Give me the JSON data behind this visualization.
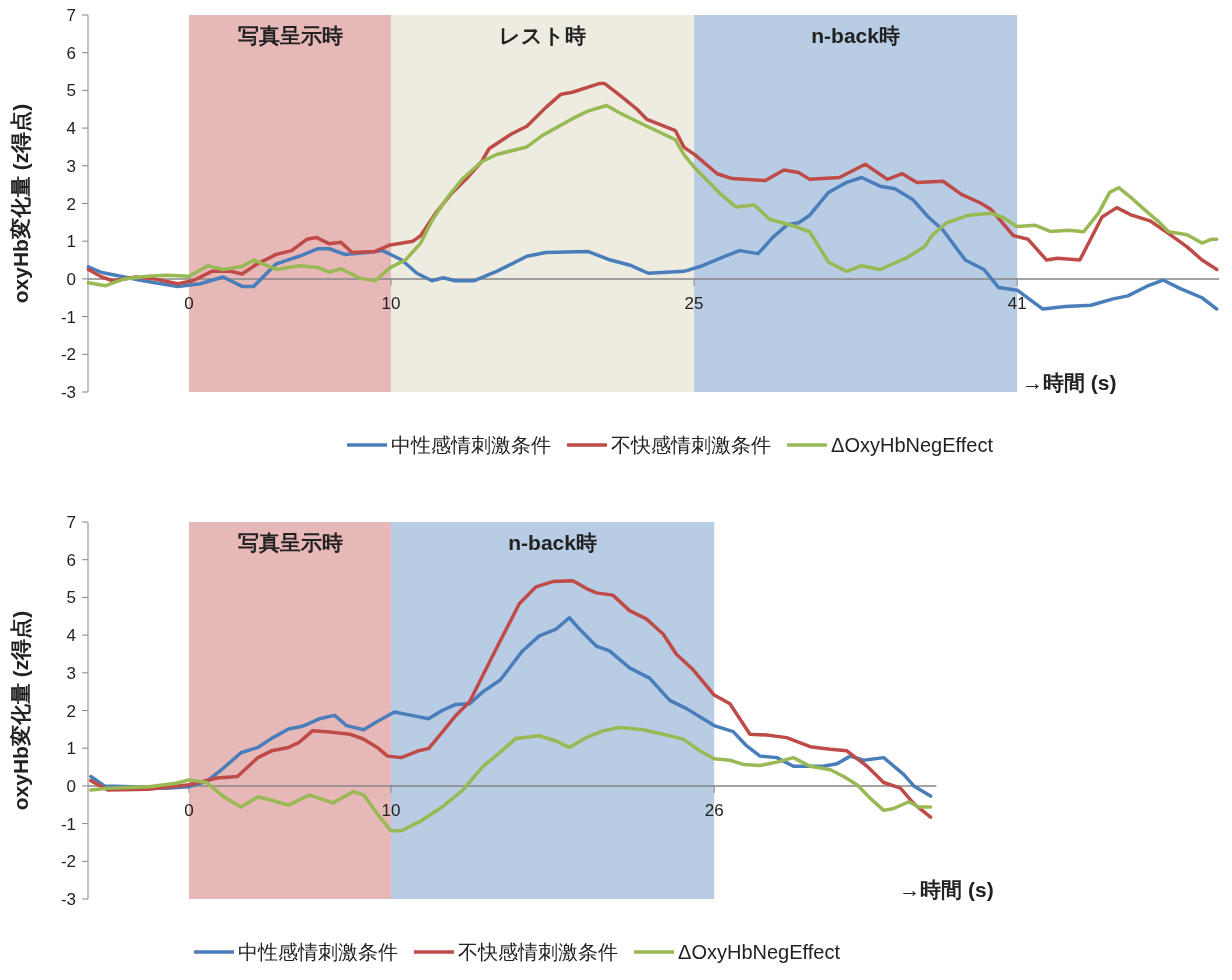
{
  "chart_data": [
    {
      "type": "line",
      "xlabel": "→時間 (s)",
      "ylabel": "oxyHb変化量 (z得点)",
      "xlim": [
        -5,
        51
      ],
      "ylim": [
        -3,
        7
      ],
      "xticks": [
        0,
        10,
        25,
        41
      ],
      "yticks": [
        -3,
        -2,
        -1,
        0,
        1,
        2,
        3,
        4,
        5,
        6,
        7
      ],
      "legend": "bottom",
      "line_style": "solid",
      "bands": [
        {
          "axis": "x",
          "from": 0,
          "to": 10,
          "label": "写真呈示時",
          "color": "#e6b8b7"
        },
        {
          "axis": "x",
          "from": 10,
          "to": 25,
          "label": "レスト時",
          "color": "#eeece1"
        },
        {
          "axis": "x",
          "from": 25,
          "to": 41,
          "label": "n-back時",
          "color": "#b8cce4"
        }
      ],
      "series": [
        {
          "name": "中性感情刺激条件",
          "color": "#4a7ebb",
          "x": [
            -4.98,
            -4.32,
            -3.2,
            -2.26,
            -0.56,
            0.56,
            1.69,
            2.63,
            3.2,
            4.32,
            5.45,
            6.39,
            6.95,
            7.71,
            8.83,
            9.59,
            10.53,
            11.28,
            12.03,
            12.59,
            13.16,
            14.1,
            15.23,
            16.73,
            17.67,
            19.74,
            20.86,
            21.8,
            22.74,
            24.51,
            25.42,
            26.52,
            27.26,
            28.17,
            28.9,
            29.63,
            30.18,
            30.73,
            31.65,
            32.56,
            33.3,
            34.21,
            34.95,
            35.86,
            36.6,
            37.33,
            38.43,
            39.35,
            40.08,
            41.0,
            42.27,
            43.37,
            44.65,
            45.75,
            46.48,
            47.4,
            48.22,
            49.05,
            50.15,
            50.88
          ],
          "values": [
            0.32,
            0.17,
            0.05,
            -0.05,
            -0.2,
            -0.13,
            0.05,
            -0.2,
            -0.2,
            0.4,
            0.6,
            0.8,
            0.8,
            0.65,
            0.7,
            0.75,
            0.5,
            0.15,
            -0.05,
            0.03,
            -0.05,
            -0.05,
            0.2,
            0.6,
            0.7,
            0.73,
            0.5,
            0.37,
            0.15,
            0.2,
            0.35,
            0.6,
            0.75,
            0.67,
            1.1,
            1.44,
            1.49,
            1.69,
            2.29,
            2.56,
            2.69,
            2.46,
            2.39,
            2.09,
            1.64,
            1.29,
            0.5,
            0.25,
            -0.23,
            -0.3,
            -0.8,
            -0.73,
            -0.7,
            -0.53,
            -0.45,
            -0.2,
            -0.03,
            -0.25,
            -0.5,
            -0.8
          ]
        },
        {
          "name": "不快感情刺激条件",
          "color": "#be4b48",
          "x": [
            -4.98,
            -4.32,
            -3.76,
            -2.63,
            -1.69,
            -0.56,
            0.19,
            1.13,
            2.07,
            2.63,
            3.38,
            4.32,
            5.08,
            5.83,
            6.3,
            6.95,
            7.52,
            8.08,
            9.21,
            9.96,
            11.09,
            11.47,
            12.22,
            12.97,
            13.72,
            14.47,
            14.85,
            15.98,
            16.73,
            17.67,
            18.42,
            18.98,
            20.3,
            20.58,
            21.43,
            22.18,
            22.67,
            24.08,
            24.51,
            25.05,
            26.15,
            26.89,
            28.53,
            29.45,
            30.18,
            30.73,
            32.2,
            33.48,
            34.58,
            35.31,
            36.04,
            37.33,
            38.24,
            39.16,
            39.71,
            40.81,
            41.54,
            42.45,
            43.0,
            44.1,
            45.2,
            45.93,
            46.67,
            47.58,
            48.5,
            49.41,
            50.15,
            50.88
          ],
          "values": [
            0.25,
            0.05,
            -0.05,
            0.05,
            0,
            -0.13,
            -0.05,
            0.2,
            0.2,
            0.13,
            0.4,
            0.65,
            0.75,
            1.05,
            1.1,
            0.93,
            0.97,
            0.7,
            0.73,
            0.9,
            1.0,
            1.15,
            1.75,
            2.25,
            2.65,
            3.1,
            3.45,
            3.85,
            4.05,
            4.55,
            4.9,
            4.95,
            5.18,
            5.18,
            4.83,
            4.5,
            4.23,
            3.93,
            3.49,
            3.29,
            2.79,
            2.66,
            2.61,
            2.89,
            2.82,
            2.64,
            2.69,
            3.04,
            2.64,
            2.79,
            2.56,
            2.59,
            2.24,
            2.02,
            1.84,
            1.15,
            1.05,
            0.5,
            0.55,
            0.5,
            1.64,
            1.89,
            1.69,
            1.54,
            1.2,
            0.85,
            0.5,
            0.25
          ]
        },
        {
          "name": "ΔOxyHbNegEffect",
          "color": "#98b954",
          "x": [
            -4.98,
            -4.13,
            -3.2,
            -2.07,
            -1.13,
            0,
            0.94,
            1.69,
            2.63,
            3.2,
            4.32,
            5.45,
            6.39,
            6.95,
            7.52,
            8.46,
            9.21,
            9.96,
            10.71,
            11.47,
            12.03,
            12.78,
            13.53,
            14.47,
            15.23,
            15.98,
            16.73,
            17.48,
            18.98,
            19.74,
            20.67,
            21.33,
            22.67,
            24.08,
            24.51,
            25.05,
            26.34,
            27.07,
            27.99,
            28.72,
            30.0,
            30.73,
            31.65,
            32.56,
            33.3,
            34.21,
            35.49,
            36.41,
            36.78,
            37.51,
            38.61,
            39.71,
            40.26,
            40.99,
            41.9,
            42.64,
            43.55,
            44.29,
            45.02,
            45.57,
            46.03,
            46.67,
            47.4,
            47.95,
            48.5,
            49.41,
            50.15,
            50.6,
            50.88
          ],
          "values": [
            -0.1,
            -0.18,
            0,
            0.07,
            0.1,
            0.07,
            0.35,
            0.25,
            0.33,
            0.5,
            0.25,
            0.35,
            0.3,
            0.18,
            0.27,
            0.02,
            -0.05,
            0.3,
            0.5,
            0.95,
            1.55,
            2.15,
            2.65,
            3.1,
            3.3,
            3.4,
            3.5,
            3.8,
            4.25,
            4.45,
            4.6,
            4.4,
            4.05,
            3.69,
            3.29,
            2.94,
            2.24,
            1.91,
            1.96,
            1.59,
            1.39,
            1.25,
            0.45,
            0.2,
            0.35,
            0.25,
            0.55,
            0.85,
            1.15,
            1.49,
            1.69,
            1.74,
            1.64,
            1.39,
            1.42,
            1.26,
            1.29,
            1.25,
            1.74,
            2.29,
            2.42,
            2.14,
            1.79,
            1.54,
            1.25,
            1.17,
            0.95,
            1.05,
            1.05
          ]
        }
      ]
    },
    {
      "type": "line",
      "xlabel": "→時間 (s)",
      "ylabel": "oxyHb変化量 (z得点)",
      "xlim": [
        -5,
        37
      ],
      "ylim": [
        -3,
        7
      ],
      "xticks": [
        0,
        10,
        26
      ],
      "yticks": [
        -3,
        -2,
        -1,
        0,
        1,
        2,
        3,
        4,
        5,
        6,
        7
      ],
      "legend": "bottom",
      "line_style": "solid",
      "bands": [
        {
          "axis": "x",
          "from": 0,
          "to": 10,
          "label": "写真呈示時",
          "color": "#e6b8b7"
        },
        {
          "axis": "x",
          "from": 10,
          "to": 26,
          "label": "n-back時",
          "color": "#b8cce4"
        }
      ],
      "series": [
        {
          "name": "中性感情刺激条件",
          "color": "#4a7ebb",
          "x": [
            -4.86,
            -4.19,
            -2.84,
            -1.15,
            0,
            0.88,
            1.72,
            2.57,
            3.41,
            4.09,
            4.93,
            5.61,
            6.45,
            7.21,
            7.8,
            8.65,
            9.32,
            10.17,
            11.01,
            11.86,
            12.53,
            13.21,
            13.89,
            14.56,
            15.41,
            16.51,
            17.34,
            18.17,
            18.83,
            19.33,
            20.16,
            20.82,
            21.81,
            22.8,
            23.8,
            24.63,
            25.45,
            26,
            26.94,
            27.61,
            28.27,
            29.1,
            29.92,
            31.41,
            32.08,
            32.74,
            33.4,
            34.39,
            35.39,
            35.88,
            36.71
          ],
          "values": [
            0.25,
            0,
            -0.02,
            -0.06,
            -0.02,
            0.12,
            0.48,
            0.88,
            1.02,
            1.26,
            1.51,
            1.58,
            1.78,
            1.87,
            1.6,
            1.49,
            1.71,
            1.96,
            1.87,
            1.78,
            2.0,
            2.16,
            2.18,
            2.5,
            2.81,
            3.58,
            3.98,
            4.16,
            4.46,
            4.16,
            3.71,
            3.58,
            3.13,
            2.86,
            2.27,
            2.05,
            1.78,
            1.6,
            1.44,
            1.06,
            0.79,
            0.75,
            0.52,
            0.52,
            0.59,
            0.79,
            0.68,
            0.75,
            0.3,
            0,
            -0.27
          ]
        },
        {
          "name": "不快感情刺激条件",
          "color": "#be4b48",
          "x": [
            -4.86,
            -4.02,
            -1.99,
            0,
            1.39,
            2.4,
            3.41,
            4.09,
            4.93,
            5.44,
            6.11,
            7.13,
            7.97,
            8.65,
            9.32,
            9.83,
            10.51,
            11.35,
            11.86,
            12.53,
            13.21,
            13.89,
            14.56,
            15.24,
            16.35,
            17.18,
            18.0,
            19.0,
            19.66,
            20.16,
            20.98,
            21.81,
            22.64,
            23.47,
            24.13,
            24.96,
            26,
            26.78,
            27.77,
            28.6,
            29.59,
            30.75,
            31.75,
            32.57,
            33.57,
            34.39,
            35.22,
            35.88,
            36.71
          ],
          "values": [
            0.14,
            -0.11,
            -0.09,
            0.03,
            0.21,
            0.25,
            0.75,
            0.93,
            1.02,
            1.15,
            1.46,
            1.42,
            1.37,
            1.24,
            1.02,
            0.79,
            0.75,
            0.93,
            0.99,
            1.42,
            1.87,
            2.23,
            2.95,
            3.67,
            4.83,
            5.28,
            5.42,
            5.44,
            5.24,
            5.12,
            5.06,
            4.65,
            4.43,
            4.03,
            3.49,
            3.08,
            2.41,
            2.18,
            1.37,
            1.35,
            1.28,
            1.04,
            0.97,
            0.93,
            0.52,
            0.09,
            -0.06,
            -0.47,
            -0.83
          ]
        },
        {
          "name": "ΔOxyHbNegEffect",
          "color": "#98b954",
          "x": [
            -4.86,
            -4.02,
            -1.99,
            -0.64,
            0,
            0.88,
            1.72,
            2.57,
            3.41,
            4.09,
            4.93,
            5.95,
            7.13,
            8.14,
            8.65,
            9.32,
            10.0,
            10.51,
            11.52,
            12.53,
            13.55,
            14.56,
            15.57,
            16.18,
            17.34,
            18.17,
            18.83,
            19.66,
            20.49,
            21.31,
            22.47,
            23.47,
            24.46,
            25.29,
            26,
            26.78,
            27.44,
            28.27,
            29.1,
            29.92,
            30.75,
            31.75,
            32.41,
            33.07,
            33.73,
            34.39,
            34.89,
            35.63,
            36.13,
            36.71
          ],
          "values": [
            -0.11,
            -0.06,
            -0.02,
            0.07,
            0.16,
            0.09,
            -0.29,
            -0.56,
            -0.29,
            -0.38,
            -0.51,
            -0.24,
            -0.45,
            -0.15,
            -0.24,
            -0.74,
            -1.19,
            -1.19,
            -0.92,
            -0.56,
            -0.11,
            0.52,
            0.97,
            1.26,
            1.33,
            1.19,
            1.02,
            1.28,
            1.46,
            1.55,
            1.49,
            1.37,
            1.24,
            0.93,
            0.72,
            0.68,
            0.57,
            0.54,
            0.63,
            0.75,
            0.52,
            0.43,
            0.25,
            0.03,
            -0.33,
            -0.65,
            -0.6,
            -0.42,
            -0.56,
            -0.56
          ]
        }
      ]
    }
  ]
}
